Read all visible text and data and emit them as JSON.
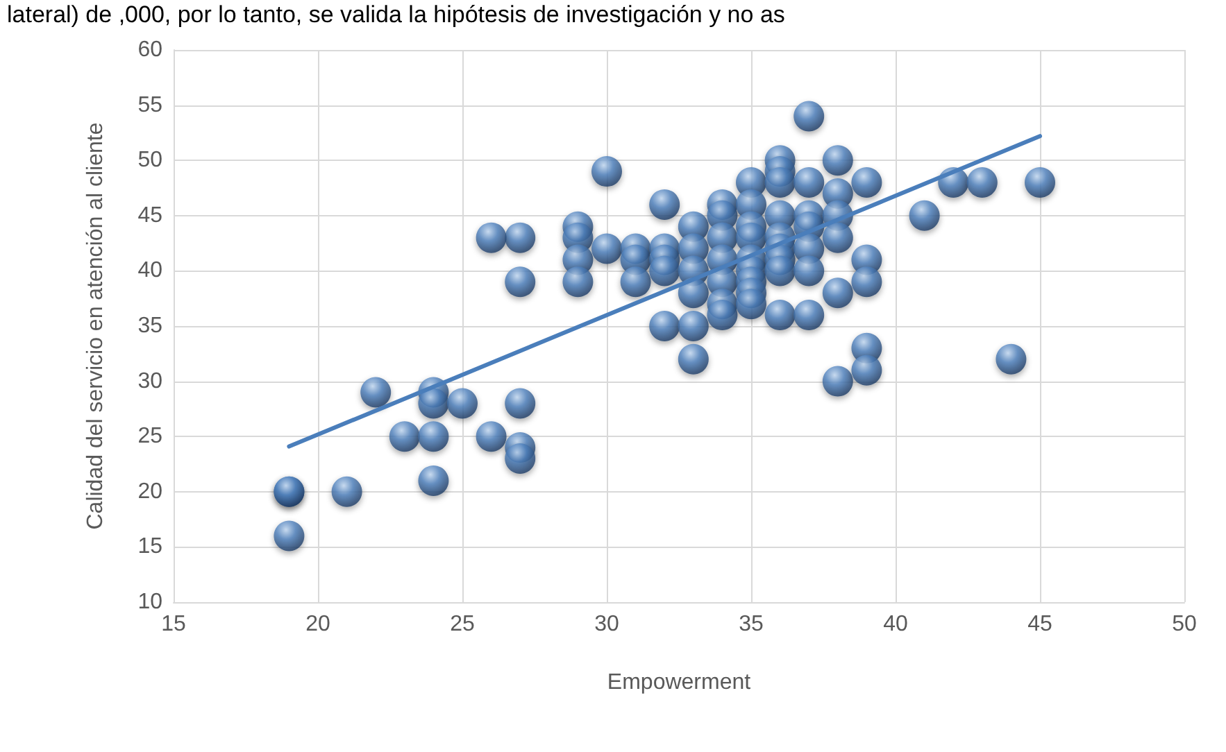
{
  "chart_data": {
    "type": "scatter",
    "xlabel": "Empowerment",
    "ylabel": "Calidad del servicio en atención al cliente",
    "annotations": [
      "lateral) de ,000, por lo tanto, se valida la hipótesis de investigación y no as"
    ],
    "xlim": [
      15,
      50
    ],
    "xticks": [
      15,
      20,
      25,
      30,
      35,
      40,
      45,
      50
    ],
    "ylim": [
      10,
      60
    ],
    "yticks": [
      10,
      15,
      20,
      25,
      30,
      35,
      40,
      45,
      50,
      55,
      60
    ],
    "grid": true,
    "marker": "circle",
    "series": [
      {
        "color": "#4f81bd",
        "x": [
          19,
          19,
          19,
          21,
          22,
          23,
          24,
          24,
          24,
          24,
          25,
          26,
          27,
          27,
          27,
          27,
          27,
          26,
          29,
          29,
          29,
          29,
          30,
          30,
          31,
          31,
          31,
          32,
          32,
          32,
          32,
          32,
          33,
          33,
          33,
          33,
          33,
          33,
          34,
          34,
          34,
          34,
          34,
          34,
          34,
          35,
          35,
          35,
          35,
          35,
          35,
          35,
          35,
          35,
          36,
          36,
          36,
          36,
          36,
          36,
          36,
          36,
          36,
          37,
          37,
          37,
          37,
          37,
          37,
          37,
          38,
          38,
          38,
          38,
          38,
          38,
          39,
          39,
          39,
          39,
          39,
          41,
          42,
          43,
          44,
          45
        ],
        "values": [
          20,
          20,
          16,
          20,
          29,
          25,
          29,
          28,
          25,
          21,
          28,
          25,
          28,
          24,
          23,
          43,
          39,
          43,
          44,
          43,
          41,
          39,
          49,
          42,
          42,
          41,
          39,
          46,
          42,
          41,
          40,
          35,
          44,
          42,
          40,
          38,
          35,
          32,
          46,
          45,
          43,
          41,
          39,
          37,
          36,
          48,
          46,
          44,
          43,
          41,
          40,
          39,
          38,
          37,
          50,
          49,
          48,
          45,
          43,
          42,
          41,
          40,
          36,
          54,
          48,
          45,
          44,
          42,
          40,
          36,
          50,
          47,
          45,
          43,
          38,
          30,
          48,
          41,
          39,
          33,
          31,
          45,
          48,
          48,
          32,
          48
        ]
      },
      {
        "type": "line",
        "color": "#4a7ebb",
        "marker": "none",
        "x": [
          19,
          45
        ],
        "values": [
          24.1,
          52.2
        ]
      }
    ]
  }
}
